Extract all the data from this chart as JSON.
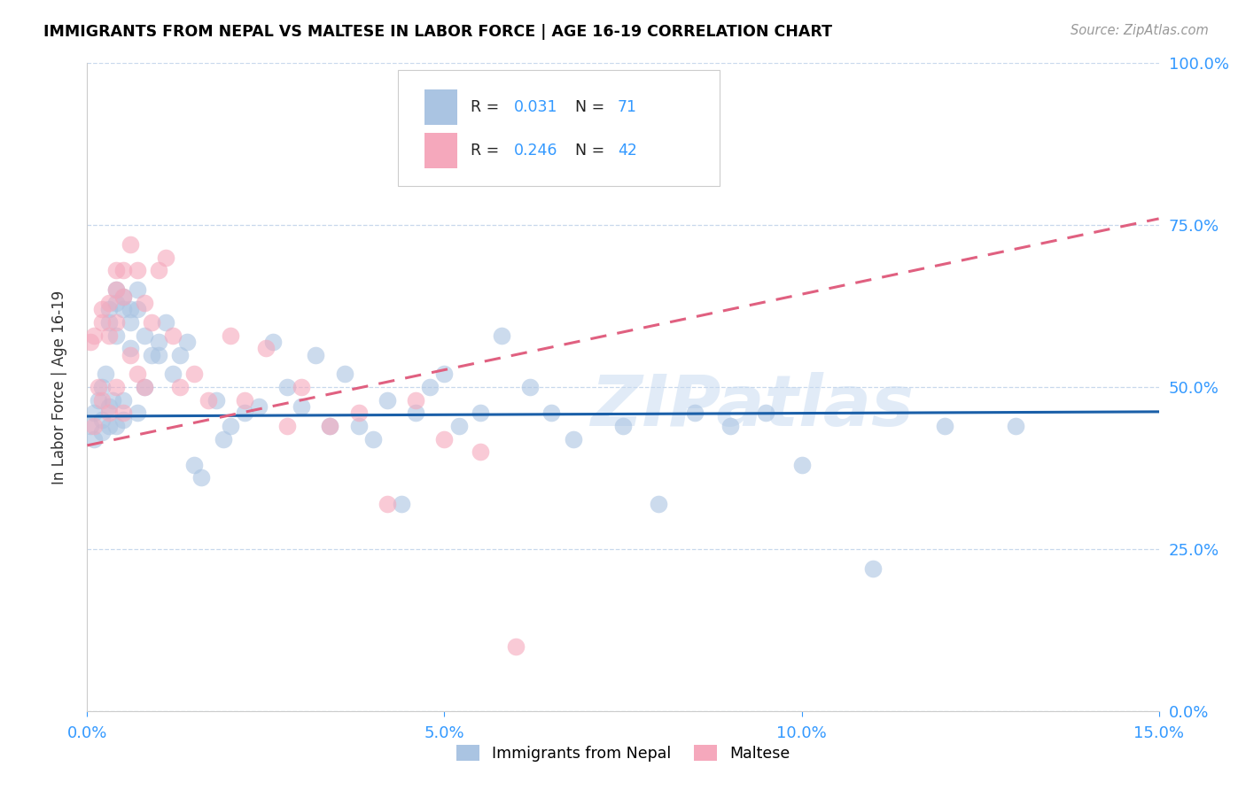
{
  "title": "IMMIGRANTS FROM NEPAL VS MALTESE IN LABOR FORCE | AGE 16-19 CORRELATION CHART",
  "source": "Source: ZipAtlas.com",
  "xlabel_ticks": [
    "0.0%",
    "5.0%",
    "10.0%",
    "15.0%"
  ],
  "xlabel_vals": [
    0.0,
    0.05,
    0.1,
    0.15
  ],
  "ylabel_ticks_right": [
    "100.0%",
    "75.0%",
    "50.0%",
    "25.0%",
    "0.0%"
  ],
  "ylabel_vals": [
    0.0,
    0.25,
    0.5,
    0.75,
    1.0
  ],
  "xlim": [
    0.0,
    0.15
  ],
  "ylim": [
    0.0,
    1.0
  ],
  "nepal_color": "#aac4e2",
  "maltese_color": "#f5a8bc",
  "nepal_R": 0.031,
  "nepal_N": 71,
  "maltese_R": 0.246,
  "maltese_N": 42,
  "nepal_line_color": "#1a5fa8",
  "maltese_line_color": "#e06080",
  "watermark": "ZIPatlas",
  "legend_label_nepal": "Immigrants from Nepal",
  "legend_label_maltese": "Maltese",
  "nepal_x": [
    0.0005,
    0.001,
    0.001,
    0.0015,
    0.002,
    0.002,
    0.002,
    0.0025,
    0.003,
    0.003,
    0.003,
    0.003,
    0.0035,
    0.004,
    0.004,
    0.004,
    0.004,
    0.005,
    0.005,
    0.005,
    0.005,
    0.006,
    0.006,
    0.006,
    0.007,
    0.007,
    0.007,
    0.008,
    0.008,
    0.009,
    0.01,
    0.01,
    0.011,
    0.012,
    0.013,
    0.014,
    0.015,
    0.016,
    0.018,
    0.019,
    0.02,
    0.022,
    0.024,
    0.026,
    0.028,
    0.03,
    0.032,
    0.034,
    0.036,
    0.038,
    0.04,
    0.042,
    0.044,
    0.046,
    0.048,
    0.05,
    0.052,
    0.055,
    0.058,
    0.062,
    0.065,
    0.068,
    0.075,
    0.08,
    0.085,
    0.09,
    0.095,
    0.1,
    0.11,
    0.12,
    0.13
  ],
  "nepal_y": [
    0.44,
    0.42,
    0.46,
    0.48,
    0.45,
    0.43,
    0.5,
    0.52,
    0.47,
    0.44,
    0.6,
    0.62,
    0.48,
    0.65,
    0.63,
    0.58,
    0.44,
    0.64,
    0.62,
    0.48,
    0.45,
    0.62,
    0.6,
    0.56,
    0.65,
    0.62,
    0.46,
    0.58,
    0.5,
    0.55,
    0.57,
    0.55,
    0.6,
    0.52,
    0.55,
    0.57,
    0.38,
    0.36,
    0.48,
    0.42,
    0.44,
    0.46,
    0.47,
    0.57,
    0.5,
    0.47,
    0.55,
    0.44,
    0.52,
    0.44,
    0.42,
    0.48,
    0.32,
    0.46,
    0.5,
    0.52,
    0.44,
    0.46,
    0.58,
    0.5,
    0.46,
    0.42,
    0.44,
    0.32,
    0.46,
    0.44,
    0.46,
    0.38,
    0.22,
    0.44,
    0.44
  ],
  "maltese_x": [
    0.0005,
    0.001,
    0.001,
    0.0015,
    0.002,
    0.002,
    0.002,
    0.003,
    0.003,
    0.003,
    0.004,
    0.004,
    0.004,
    0.004,
    0.005,
    0.005,
    0.005,
    0.006,
    0.006,
    0.007,
    0.007,
    0.008,
    0.008,
    0.009,
    0.01,
    0.011,
    0.012,
    0.013,
    0.015,
    0.017,
    0.02,
    0.022,
    0.025,
    0.028,
    0.03,
    0.034,
    0.038,
    0.042,
    0.046,
    0.05,
    0.055,
    0.06
  ],
  "maltese_y": [
    0.57,
    0.44,
    0.58,
    0.5,
    0.62,
    0.6,
    0.48,
    0.63,
    0.58,
    0.46,
    0.68,
    0.65,
    0.6,
    0.5,
    0.68,
    0.64,
    0.46,
    0.72,
    0.55,
    0.68,
    0.52,
    0.63,
    0.5,
    0.6,
    0.68,
    0.7,
    0.58,
    0.5,
    0.52,
    0.48,
    0.58,
    0.48,
    0.56,
    0.44,
    0.5,
    0.44,
    0.46,
    0.32,
    0.48,
    0.42,
    0.4,
    0.1
  ],
  "nepal_trend_x0": 0.0,
  "nepal_trend_y0": 0.455,
  "nepal_trend_x1": 0.15,
  "nepal_trend_y1": 0.462,
  "maltese_trend_x0": 0.0,
  "maltese_trend_y0": 0.41,
  "maltese_trend_x1": 0.15,
  "maltese_trend_y1": 0.76
}
